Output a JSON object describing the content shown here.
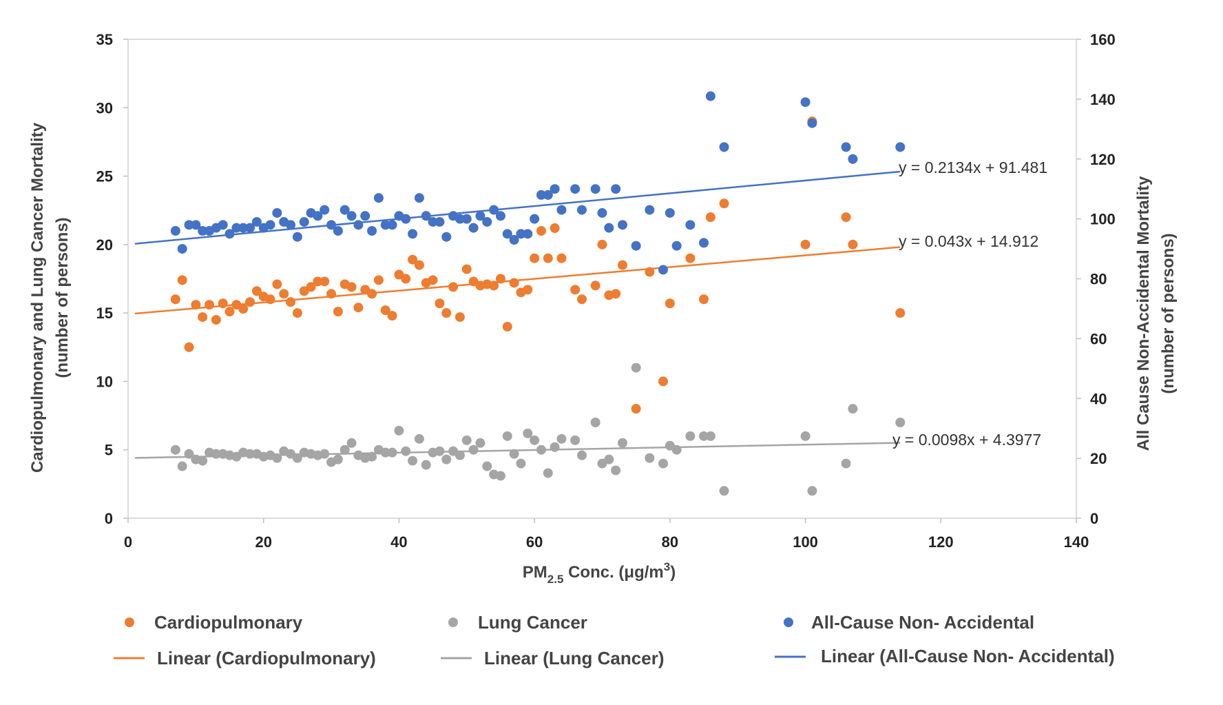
{
  "chart_data": {
    "type": "scatter",
    "xlabel_main": "PM",
    "xlabel_sub": "2.5",
    "xlabel_rest": " Conc. (μg/m",
    "xlabel_sup": "3",
    "xlabel_end": ")",
    "ylabel_left_line1": "Cardiopulmonary and Lung Cancer Mortality",
    "ylabel_left_line2": "(number of persons)",
    "ylabel_right_line1": "All Cause Non-Accidental Mortality",
    "ylabel_right_line2": "(number of persons)",
    "xlim": [
      0,
      140
    ],
    "ylim_left": [
      0,
      35
    ],
    "ylim_right": [
      0,
      160
    ],
    "x_ticks": [
      "0",
      "20",
      "40",
      "60",
      "80",
      "100",
      "120",
      "140"
    ],
    "y_left_ticks": [
      "0",
      "5",
      "10",
      "15",
      "20",
      "25",
      "30",
      "35"
    ],
    "y_right_ticks": [
      "0",
      "20",
      "40",
      "60",
      "80",
      "100",
      "120",
      "140",
      "160"
    ],
    "series": [
      {
        "name": "Cardiopulmonary",
        "axis": "left",
        "color": "#ED7D31",
        "points": [
          [
            7,
            16
          ],
          [
            8,
            17.4
          ],
          [
            9,
            12.5
          ],
          [
            10,
            15.6
          ],
          [
            11,
            14.7
          ],
          [
            12,
            15.6
          ],
          [
            13,
            14.5
          ],
          [
            14,
            15.7
          ],
          [
            15,
            15.1
          ],
          [
            16,
            15.6
          ],
          [
            17,
            15.3
          ],
          [
            18,
            15.8
          ],
          [
            19,
            16.6
          ],
          [
            20,
            16.2
          ],
          [
            21,
            16
          ],
          [
            22,
            17.1
          ],
          [
            23,
            16.4
          ],
          [
            24,
            15.8
          ],
          [
            25,
            15
          ],
          [
            26,
            16.6
          ],
          [
            27,
            16.9
          ],
          [
            28,
            17.3
          ],
          [
            29,
            17.3
          ],
          [
            30,
            16.4
          ],
          [
            31,
            15.1
          ],
          [
            32,
            17.1
          ],
          [
            33,
            16.9
          ],
          [
            34,
            15.4
          ],
          [
            35,
            16.7
          ],
          [
            36,
            16.4
          ],
          [
            37,
            17.4
          ],
          [
            38,
            15.2
          ],
          [
            39,
            14.8
          ],
          [
            40,
            17.8
          ],
          [
            41,
            17.5
          ],
          [
            42,
            18.9
          ],
          [
            43,
            18.5
          ],
          [
            44,
            17.2
          ],
          [
            45,
            17.4
          ],
          [
            46,
            15.7
          ],
          [
            47,
            15
          ],
          [
            48,
            16.9
          ],
          [
            49,
            14.7
          ],
          [
            50,
            18.2
          ],
          [
            51,
            17.3
          ],
          [
            52,
            17
          ],
          [
            53,
            17.1
          ],
          [
            54,
            17
          ],
          [
            55,
            17.5
          ],
          [
            56,
            14
          ],
          [
            57,
            17.2
          ],
          [
            58,
            16.5
          ],
          [
            59,
            16.7
          ],
          [
            60,
            19
          ],
          [
            61,
            21
          ],
          [
            62,
            19
          ],
          [
            63,
            21.2
          ],
          [
            64,
            19
          ],
          [
            66,
            16.7
          ],
          [
            67,
            16
          ],
          [
            69,
            17
          ],
          [
            70,
            20
          ],
          [
            71,
            16.3
          ],
          [
            72,
            16.4
          ],
          [
            73,
            18.5
          ],
          [
            75,
            8
          ],
          [
            77,
            18
          ],
          [
            79,
            10
          ],
          [
            80,
            15.7
          ],
          [
            83,
            19
          ],
          [
            85,
            16
          ],
          [
            86,
            22
          ],
          [
            88,
            23
          ],
          [
            100,
            20
          ],
          [
            101,
            29
          ],
          [
            106,
            22
          ],
          [
            107,
            20
          ],
          [
            114,
            15
          ]
        ]
      },
      {
        "name": "Lung Cancer",
        "axis": "left",
        "color": "#A5A5A5",
        "points": [
          [
            7,
            5
          ],
          [
            8,
            3.8
          ],
          [
            9,
            4.7
          ],
          [
            10,
            4.3
          ],
          [
            11,
            4.2
          ],
          [
            12,
            4.8
          ],
          [
            13,
            4.7
          ],
          [
            14,
            4.7
          ],
          [
            15,
            4.6
          ],
          [
            16,
            4.5
          ],
          [
            17,
            4.8
          ],
          [
            18,
            4.7
          ],
          [
            19,
            4.7
          ],
          [
            20,
            4.5
          ],
          [
            21,
            4.6
          ],
          [
            22,
            4.4
          ],
          [
            23,
            4.9
          ],
          [
            24,
            4.7
          ],
          [
            25,
            4.4
          ],
          [
            26,
            4.8
          ],
          [
            27,
            4.7
          ],
          [
            28,
            4.6
          ],
          [
            29,
            4.7
          ],
          [
            30,
            4.1
          ],
          [
            31,
            4.3
          ],
          [
            32,
            5
          ],
          [
            33,
            5.5
          ],
          [
            34,
            4.6
          ],
          [
            35,
            4.4
          ],
          [
            36,
            4.5
          ],
          [
            37,
            5
          ],
          [
            38,
            4.8
          ],
          [
            39,
            4.8
          ],
          [
            40,
            6.4
          ],
          [
            41,
            4.9
          ],
          [
            42,
            4.2
          ],
          [
            43,
            5.8
          ],
          [
            44,
            3.9
          ],
          [
            45,
            4.8
          ],
          [
            46,
            4.9
          ],
          [
            47,
            4.3
          ],
          [
            48,
            4.9
          ],
          [
            49,
            4.6
          ],
          [
            50,
            5.7
          ],
          [
            51,
            5
          ],
          [
            52,
            5.5
          ],
          [
            53,
            3.8
          ],
          [
            54,
            3.2
          ],
          [
            55,
            3.1
          ],
          [
            56,
            6
          ],
          [
            57,
            4.7
          ],
          [
            58,
            4
          ],
          [
            59,
            6.2
          ],
          [
            60,
            5.7
          ],
          [
            61,
            5
          ],
          [
            62,
            3.3
          ],
          [
            63,
            5.2
          ],
          [
            64,
            5.8
          ],
          [
            66,
            5.7
          ],
          [
            67,
            4.6
          ],
          [
            69,
            7
          ],
          [
            70,
            4
          ],
          [
            71,
            4.3
          ],
          [
            72,
            3.5
          ],
          [
            73,
            5.5
          ],
          [
            75,
            11
          ],
          [
            77,
            4.4
          ],
          [
            79,
            4
          ],
          [
            80,
            5.3
          ],
          [
            81,
            5
          ],
          [
            83,
            6
          ],
          [
            85,
            6
          ],
          [
            86,
            6
          ],
          [
            88,
            2
          ],
          [
            100,
            6
          ],
          [
            101,
            2
          ],
          [
            106,
            4
          ],
          [
            107,
            8
          ],
          [
            114,
            7
          ]
        ]
      },
      {
        "name": "All-Cause Non- Accidental",
        "axis": "right",
        "color": "#4472C4",
        "points": [
          [
            7,
            96
          ],
          [
            8,
            90
          ],
          [
            9,
            98
          ],
          [
            10,
            98
          ],
          [
            11,
            96
          ],
          [
            12,
            96
          ],
          [
            13,
            97
          ],
          [
            14,
            98
          ],
          [
            15,
            95
          ],
          [
            16,
            97
          ],
          [
            17,
            97
          ],
          [
            18,
            97
          ],
          [
            19,
            99
          ],
          [
            20,
            97
          ],
          [
            21,
            98
          ],
          [
            22,
            102
          ],
          [
            23,
            99
          ],
          [
            24,
            98
          ],
          [
            25,
            94
          ],
          [
            26,
            99
          ],
          [
            27,
            102
          ],
          [
            28,
            101
          ],
          [
            29,
            103
          ],
          [
            30,
            98
          ],
          [
            31,
            96
          ],
          [
            32,
            103
          ],
          [
            33,
            101
          ],
          [
            34,
            98
          ],
          [
            35,
            101
          ],
          [
            36,
            96
          ],
          [
            37,
            107
          ],
          [
            38,
            98
          ],
          [
            39,
            98
          ],
          [
            40,
            101
          ],
          [
            41,
            100
          ],
          [
            42,
            95
          ],
          [
            43,
            107
          ],
          [
            44,
            101
          ],
          [
            45,
            99
          ],
          [
            46,
            99
          ],
          [
            47,
            94
          ],
          [
            48,
            101
          ],
          [
            49,
            100
          ],
          [
            50,
            100
          ],
          [
            51,
            97
          ],
          [
            52,
            101
          ],
          [
            53,
            99
          ],
          [
            54,
            103
          ],
          [
            55,
            101
          ],
          [
            56,
            95
          ],
          [
            57,
            93
          ],
          [
            58,
            95
          ],
          [
            59,
            95
          ],
          [
            60,
            100
          ],
          [
            61,
            108
          ],
          [
            62,
            108
          ],
          [
            63,
            110
          ],
          [
            64,
            103
          ],
          [
            66,
            110
          ],
          [
            67,
            103
          ],
          [
            69,
            110
          ],
          [
            70,
            102
          ],
          [
            71,
            97
          ],
          [
            72,
            110
          ],
          [
            73,
            98
          ],
          [
            75,
            91
          ],
          [
            77,
            103
          ],
          [
            79,
            83
          ],
          [
            80,
            102
          ],
          [
            81,
            91
          ],
          [
            83,
            98
          ],
          [
            85,
            92
          ],
          [
            86,
            141
          ],
          [
            88,
            124
          ],
          [
            100,
            139
          ],
          [
            101,
            132
          ],
          [
            106,
            124
          ],
          [
            107,
            120
          ],
          [
            114,
            124
          ]
        ]
      }
    ],
    "trendlines": [
      {
        "name": "Linear (Cardiopulmonary)",
        "axis": "left",
        "color": "#ED7D31",
        "slope": 0.043,
        "intercept": 14.912,
        "x_range": [
          1,
          114
        ],
        "equation": "y = 0.043x + 14.912"
      },
      {
        "name": "Linear (Lung Cancer)",
        "axis": "left",
        "color": "#A5A5A5",
        "slope": 0.0098,
        "intercept": 4.3977,
        "x_range": [
          1,
          114
        ],
        "equation": "y = 0.0098x + 4.3977"
      },
      {
        "name": "Linear (All-Cause Non- Accidental)",
        "axis": "right",
        "color": "#4472C4",
        "slope": 0.2134,
        "intercept": 91.481,
        "x_range": [
          1,
          114
        ],
        "equation": "y = 0.2134x + 91.481"
      }
    ],
    "legend": {
      "placement": "bottom",
      "markers": [
        "Cardiopulmonary",
        "Lung Cancer",
        "All-Cause Non- Accidental"
      ],
      "lines": [
        "Linear (Cardiopulmonary)",
        "Linear (Lung Cancer)",
        "Linear (All-Cause Non- Accidental)"
      ]
    }
  }
}
